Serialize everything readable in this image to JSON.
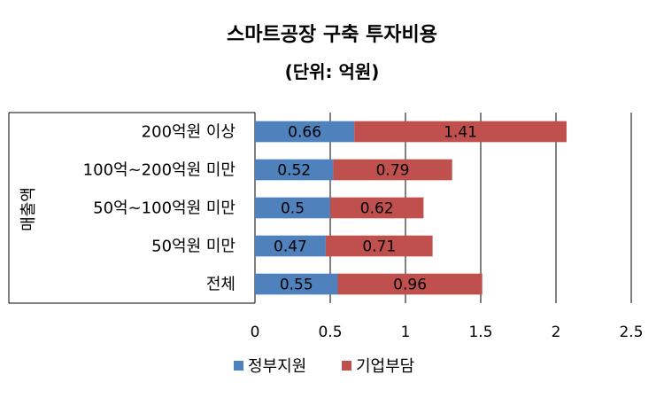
{
  "chart_data": {
    "type": "bar",
    "orientation": "horizontal",
    "stacked": true,
    "title": "스마트공장 구축 투자비용",
    "subtitle": "(단위: 억원)",
    "ylabel": "매출액",
    "xlabel": "",
    "categories": [
      "200억원 이상",
      "100억~200억원 미만",
      "50억~100억원 미만",
      "50억원 미만",
      "전체"
    ],
    "series": [
      {
        "name": "정부지원",
        "color": "#4F81BD",
        "values": [
          0.66,
          0.52,
          0.5,
          0.47,
          0.55
        ]
      },
      {
        "name": "기업부담",
        "color": "#C0504D",
        "values": [
          1.41,
          0.79,
          0.62,
          0.71,
          0.96
        ]
      }
    ],
    "xlim": [
      0,
      2.5
    ],
    "xticks": [
      "0",
      "0.5",
      "1",
      "1.5",
      "2",
      "2.5"
    ],
    "grid": true,
    "legend": "bottom"
  }
}
